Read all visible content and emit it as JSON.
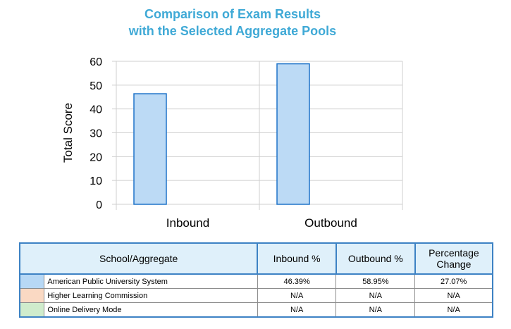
{
  "chart_data": {
    "type": "bar",
    "title_lines": [
      "Comparison of Exam Results",
      "with the Selected Aggregate Pools"
    ],
    "ylabel": "Total Score",
    "xlabel": "",
    "ylim": [
      0,
      60
    ],
    "yticks": [
      0,
      10,
      20,
      30,
      40,
      50,
      60
    ],
    "grid": true,
    "categories": [
      "Inbound",
      "Outbound"
    ],
    "series": [
      {
        "name": "American Public University System",
        "values": [
          46.39,
          58.95
        ],
        "color": "#bcdaf5",
        "stroke": "#1e73c8"
      }
    ]
  },
  "table": {
    "headers": [
      "School/Aggregate",
      "Inbound %",
      "Outbound %",
      "Percentage Change"
    ],
    "header_change_lines": [
      "Percentage",
      "Change"
    ],
    "rows": [
      {
        "swatch": "#b7d8f5",
        "name": "American Public University System",
        "inbound": "46.39%",
        "outbound": "58.95%",
        "change": "27.07%"
      },
      {
        "swatch": "#fad9c3",
        "name": "Higher Learning Commission",
        "inbound": "N/A",
        "outbound": "N/A",
        "change": "N/A"
      },
      {
        "swatch": "#cfeccc",
        "name": "Online Delivery Mode",
        "inbound": "N/A",
        "outbound": "N/A",
        "change": "N/A"
      }
    ]
  }
}
